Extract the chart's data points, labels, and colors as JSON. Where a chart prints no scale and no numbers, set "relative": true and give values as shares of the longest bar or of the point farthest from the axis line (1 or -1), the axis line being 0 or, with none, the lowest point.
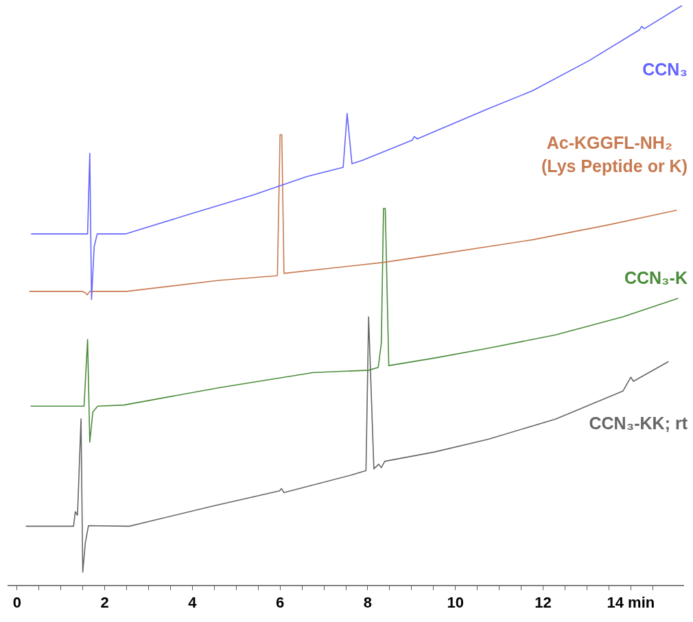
{
  "chart_data": {
    "type": "line",
    "relative": true,
    "marker": "none",
    "line_style": "solid",
    "grid": false,
    "legend": false,
    "tick_labels": "x",
    "xlim": [
      -0.2,
      15.2
    ],
    "xticks": [
      0,
      {
        "value": 0.5,
        "label": null
      },
      {
        "value": 1,
        "label": null
      },
      {
        "value": 1.5,
        "label": null
      },
      2,
      {
        "value": 2.5,
        "label": null
      },
      {
        "value": 3,
        "label": null
      },
      {
        "value": 3.5,
        "label": null
      },
      4,
      {
        "value": 4.5,
        "label": null
      },
      {
        "value": 5,
        "label": null
      },
      {
        "value": 5.5,
        "label": null
      },
      6,
      {
        "value": 6.5,
        "label": null
      },
      {
        "value": 7,
        "label": null
      },
      {
        "value": 7.5,
        "label": null
      },
      8,
      {
        "value": 8.5,
        "label": null
      },
      {
        "value": 9,
        "label": null
      },
      {
        "value": 9.5,
        "label": null
      },
      10,
      {
        "value": 10.5,
        "label": null
      },
      {
        "value": 11,
        "label": null
      },
      {
        "value": 11.5,
        "label": null
      },
      12,
      {
        "value": 12.5,
        "label": null
      },
      {
        "value": 13,
        "label": null
      },
      {
        "value": 13.5,
        "label": null
      },
      {
        "value": 14,
        "label": "14 min"
      },
      {
        "value": 14.5,
        "label": null
      }
    ],
    "series": [
      {
        "name": "CCN₃",
        "color": "#6464ff",
        "x": [
          0.32,
          1.61,
          1.66,
          1.7,
          1.76,
          1.83,
          2.47,
          3.85,
          5.38,
          6.61,
          7.44,
          7.53,
          7.64,
          7.88,
          9.02,
          9.06,
          9.13,
          10.75,
          11.76,
          13.05,
          14.2,
          14.25,
          14.31,
          15.17
        ],
        "values": [
          0.606,
          0.606,
          0.745,
          0.493,
          0.584,
          0.606,
          0.606,
          0.638,
          0.673,
          0.705,
          0.721,
          0.814,
          0.727,
          0.733,
          0.768,
          0.774,
          0.77,
          0.822,
          0.853,
          0.905,
          0.958,
          0.964,
          0.96,
          1
        ]
      },
      {
        "name": "Ac-KGGFL-NH₂\n(Lys Peptide or K)",
        "color": "#c87a50",
        "x": [
          0.28,
          1.47,
          1.55,
          1.6,
          1.66,
          2.5,
          4.62,
          5.94,
          6.0,
          6.04,
          6.09,
          8.36,
          9.52,
          11.76,
          13.51,
          15.05
        ],
        "values": [
          0.507,
          0.507,
          0.505,
          0.501,
          0.507,
          0.507,
          0.526,
          0.534,
          0.777,
          0.777,
          0.538,
          0.557,
          0.57,
          0.596,
          0.622,
          0.647
        ]
      },
      {
        "name": "CCN₃-K",
        "color": "#4a8c3a",
        "x": [
          0.31,
          1.53,
          1.61,
          1.66,
          1.73,
          1.84,
          2.44,
          4.62,
          6.76,
          8.02,
          8.24,
          8.31,
          8.36,
          8.4,
          8.48,
          9.52,
          10.75,
          12.29,
          13.82,
          15.08
        ],
        "values": [
          0.309,
          0.309,
          0.424,
          0.247,
          0.299,
          0.309,
          0.311,
          0.341,
          0.367,
          0.371,
          0.376,
          0.418,
          0.65,
          0.65,
          0.379,
          0.392,
          0.409,
          0.432,
          0.463,
          0.495
        ]
      },
      {
        "name": "CCN₃-KK; rt",
        "color": "#666666",
        "x": [
          0.2,
          1.29,
          1.33,
          1.38,
          1.46,
          1.5,
          1.56,
          1.63,
          2.56,
          4.48,
          5.99,
          6.03,
          6.09,
          7.61,
          7.96,
          8.02,
          8.14,
          8.25,
          8.31,
          8.39,
          9.52,
          10.75,
          12.29,
          13.82,
          14.0,
          14.06,
          14.86
        ],
        "values": [
          0.102,
          0.102,
          0.127,
          0.121,
          0.287,
          0.023,
          0.074,
          0.103,
          0.102,
          0.137,
          0.163,
          0.167,
          0.16,
          0.19,
          0.198,
          0.463,
          0.201,
          0.209,
          0.203,
          0.214,
          0.23,
          0.252,
          0.287,
          0.335,
          0.359,
          0.352,
          0.386
        ]
      }
    ]
  }
}
